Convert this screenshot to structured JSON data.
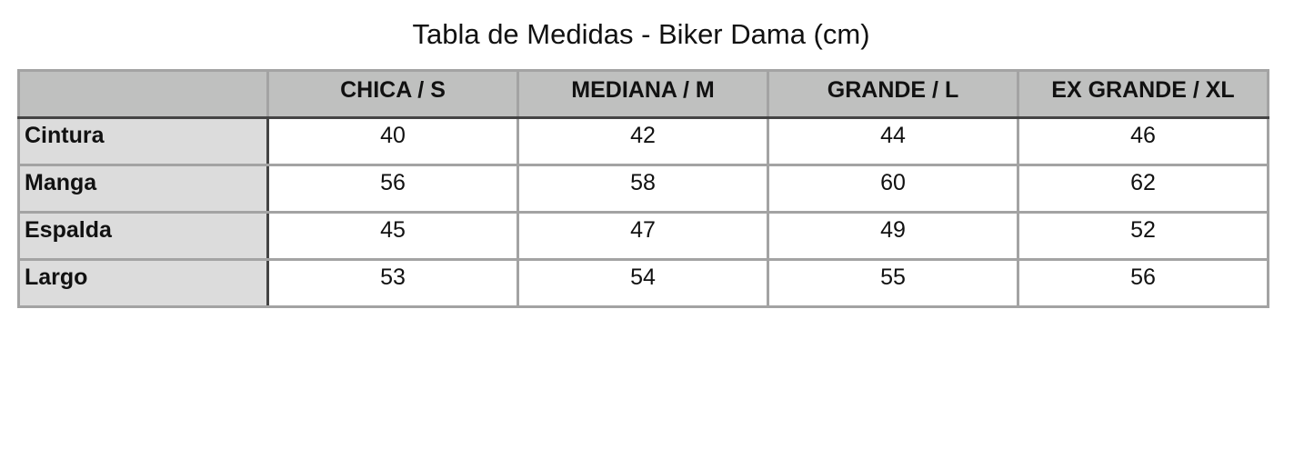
{
  "title": "Tabla de Medidas - Biker Dama (cm)",
  "headers": [
    "",
    "CHICA / S",
    "MEDIANA / M",
    "GRANDE / L",
    "EX GRANDE / XL"
  ],
  "rows": [
    {
      "label": "Cintura",
      "values": [
        "40",
        "42",
        "44",
        "46"
      ]
    },
    {
      "label": "Manga",
      "values": [
        "56",
        "58",
        "60",
        "62"
      ]
    },
    {
      "label": "Espalda",
      "values": [
        "45",
        "47",
        "49",
        "52"
      ]
    },
    {
      "label": "Largo",
      "values": [
        "53",
        "54",
        "55",
        "56"
      ]
    }
  ],
  "colors": {
    "header_bg": "#bfc0bf",
    "row_header_bg": "#dcdcdc",
    "border": "#a3a3a3",
    "accent_border": "#444444"
  }
}
